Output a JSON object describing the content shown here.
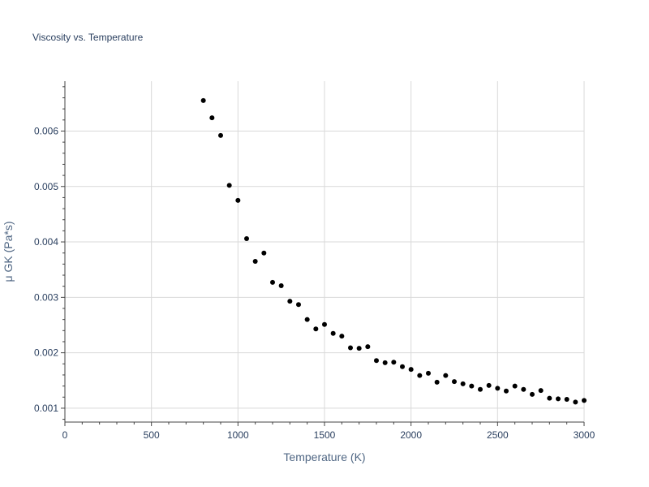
{
  "chart_data": {
    "type": "scatter",
    "title": "Viscosity vs. Temperature",
    "xlabel": "Temperature (K)",
    "ylabel": "μ GK (Pa*s)",
    "xlim": [
      0,
      3000
    ],
    "ylim": [
      0.00075,
      0.0069
    ],
    "xticks": [
      0,
      500,
      1000,
      1500,
      2000,
      2500,
      3000
    ],
    "xtick_labels": [
      "0",
      "500",
      "1000",
      "1500",
      "2000",
      "2500",
      "3000"
    ],
    "yticks": [
      0.001,
      0.002,
      0.003,
      0.004,
      0.005,
      0.006
    ],
    "ytick_labels": [
      "0.001",
      "0.002",
      "0.003",
      "0.004",
      "0.005",
      "0.006"
    ],
    "grid": true,
    "marker_color": "#000000",
    "x": [
      800,
      850,
      900,
      950,
      1000,
      1050,
      1100,
      1150,
      1200,
      1250,
      1300,
      1350,
      1400,
      1450,
      1500,
      1550,
      1600,
      1650,
      1700,
      1750,
      1800,
      1850,
      1900,
      1950,
      2000,
      2050,
      2100,
      2150,
      2200,
      2250,
      2300,
      2350,
      2400,
      2450,
      2500,
      2550,
      2600,
      2650,
      2700,
      2750,
      2800,
      2850,
      2900,
      2950,
      3000
    ],
    "y": [
      0.00655,
      0.00624,
      0.00592,
      0.00502,
      0.00475,
      0.00406,
      0.00365,
      0.0038,
      0.00327,
      0.00321,
      0.00293,
      0.00287,
      0.0026,
      0.00243,
      0.00251,
      0.00235,
      0.0023,
      0.00209,
      0.00208,
      0.00211,
      0.00186,
      0.00182,
      0.00183,
      0.00175,
      0.0017,
      0.00159,
      0.00163,
      0.00147,
      0.00159,
      0.00148,
      0.00144,
      0.0014,
      0.00134,
      0.00141,
      0.00136,
      0.00131,
      0.0014,
      0.00134,
      0.00125,
      0.00132,
      0.00118,
      0.00117,
      0.00116,
      0.00111,
      0.00114
    ]
  }
}
